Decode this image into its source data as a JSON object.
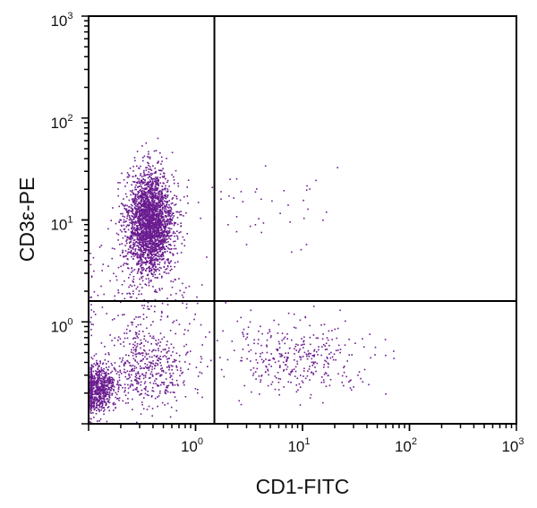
{
  "chart_data": {
    "type": "scatter",
    "title": "",
    "xlabel": "CD1-FITC",
    "ylabel": "CD3ε-PE",
    "x_scale": "log",
    "y_scale": "log",
    "xlim": [
      0.1,
      1000
    ],
    "ylim": [
      0.1,
      1000
    ],
    "x_ticks": [
      {
        "value": 1,
        "base": "10",
        "exp": "0"
      },
      {
        "value": 10,
        "base": "10",
        "exp": "1"
      },
      {
        "value": 100,
        "base": "10",
        "exp": "2"
      },
      {
        "value": 1000,
        "base": "10",
        "exp": "3"
      }
    ],
    "y_ticks": [
      {
        "value": 1,
        "base": "10",
        "exp": "0"
      },
      {
        "value": 10,
        "base": "10",
        "exp": "1"
      },
      {
        "value": 100,
        "base": "10",
        "exp": "2"
      },
      {
        "value": 1000,
        "base": "10",
        "exp": "3"
      }
    ],
    "quadrant_gate": {
      "x": 1.5,
      "y": 1.6
    },
    "grid": false,
    "dot_color": "#6a1b8f",
    "populations": [
      {
        "count": 2600,
        "cx": 0.37,
        "cy": 9.5,
        "spread_x_dex": 0.11,
        "spread_y_dex": 0.25
      },
      {
        "count": 700,
        "cx": 0.12,
        "cy": 0.22,
        "spread_x_dex": 0.08,
        "spread_y_dex": 0.12
      },
      {
        "count": 450,
        "cx": 0.35,
        "cy": 0.35,
        "spread_x_dex": 0.2,
        "spread_y_dex": 0.2
      },
      {
        "count": 350,
        "cx": 9,
        "cy": 0.45,
        "spread_x_dex": 0.35,
        "spread_y_dex": 0.17
      },
      {
        "count": 180,
        "cx": 0.3,
        "cy": 1.5,
        "spread_x_dex": 0.3,
        "spread_y_dex": 0.3
      },
      {
        "count": 45,
        "cx": 4,
        "cy": 15,
        "spread_x_dex": 0.35,
        "spread_y_dex": 0.25
      }
    ]
  }
}
